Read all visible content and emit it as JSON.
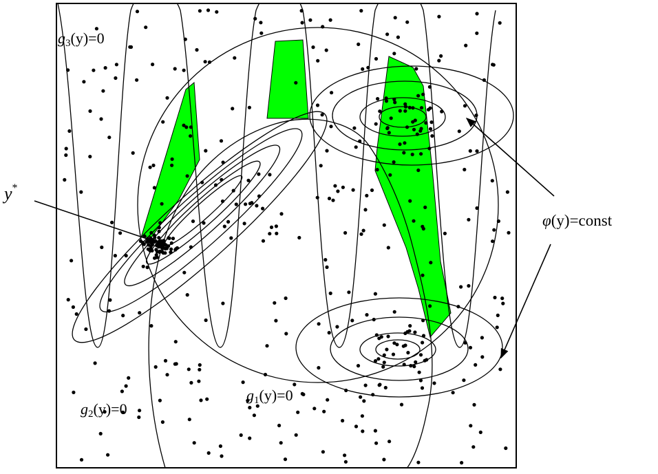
{
  "colors": {
    "feasible_region": "#00ff00",
    "lines": "#000000",
    "background": "#ffffff"
  },
  "labels": {
    "g3": {
      "func": "g",
      "sub": "3",
      "arg": "(y)",
      "eq": "=0"
    },
    "g2": {
      "func": "g",
      "sub": "2",
      "arg": "(y)",
      "eq": "=0"
    },
    "g1": {
      "func": "g",
      "sub": "1",
      "arg": "(y)",
      "eq": "=0"
    },
    "optimum": {
      "sym": "y",
      "sup": "*"
    },
    "objective": {
      "phi": "φ",
      "arg": "(y)",
      "eq": "=const"
    }
  }
}
